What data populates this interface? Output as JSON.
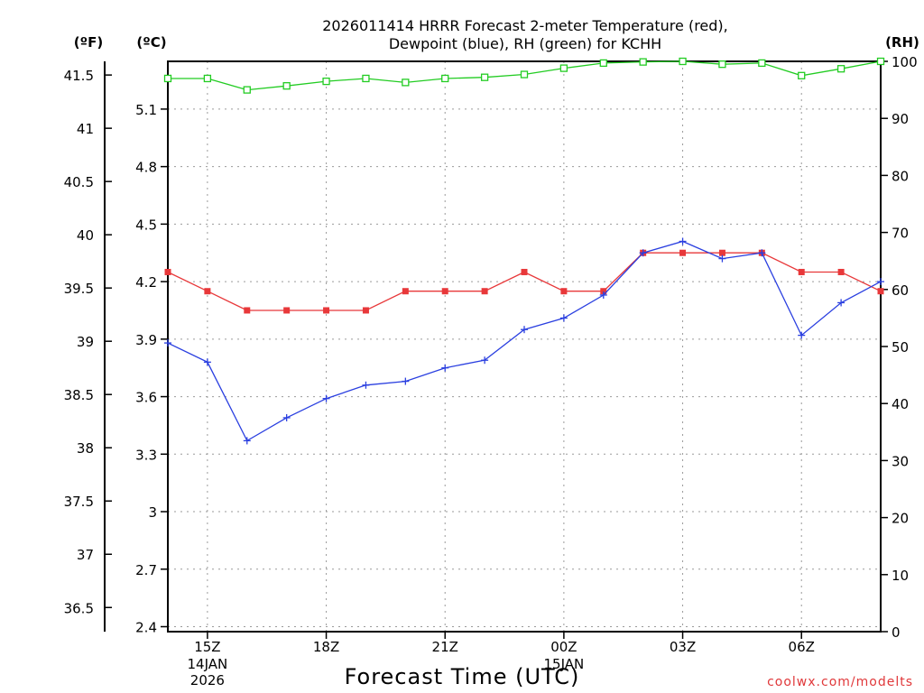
{
  "title": {
    "line1": "2026011414 HRRR Forecast 2-meter Temperature (red),",
    "line2": "Dewpoint (blue), RH (green) for KCHH"
  },
  "axis_units": {
    "fahrenheit": "(ºF)",
    "celsius": "(ºC)",
    "rh": "(RH)"
  },
  "xlabel": "Forecast Time (UTC)",
  "credit": "coolwx.com/modelts",
  "colors": {
    "temperature": "#e8383a",
    "dewpoint": "#2a3fe0",
    "rh": "#22cc22"
  },
  "chart_data": {
    "type": "line",
    "title": "2026011414 HRRR Forecast 2-meter Temperature (red), Dewpoint (blue), RH (green) for KCHH",
    "xlabel": "Forecast Time (UTC)",
    "x": [
      "14Z",
      "15Z",
      "16Z",
      "17Z",
      "18Z",
      "19Z",
      "20Z",
      "21Z",
      "22Z",
      "23Z",
      "00Z",
      "01Z",
      "02Z",
      "03Z",
      "04Z",
      "05Z",
      "06Z",
      "07Z",
      "08Z"
    ],
    "x_ticks": [
      {
        "index": 1,
        "label": "15Z",
        "sub": [
          "14JAN",
          "2026"
        ]
      },
      {
        "index": 4,
        "label": "18Z",
        "sub": []
      },
      {
        "index": 7,
        "label": "21Z",
        "sub": []
      },
      {
        "index": 10,
        "label": "00Z",
        "sub": [
          "15JAN"
        ]
      },
      {
        "index": 13,
        "label": "03Z",
        "sub": []
      },
      {
        "index": 16,
        "label": "06Z",
        "sub": []
      }
    ],
    "left_axis_celsius": {
      "label": "(ºC)",
      "range": [
        2.4,
        5.35
      ],
      "ticks": [
        "2.4",
        "2.7",
        "3",
        "3.3",
        "3.6",
        "3.9",
        "4.2",
        "4.5",
        "4.8",
        "5.1"
      ]
    },
    "left_axis_fahrenheit": {
      "label": "(ºF)",
      "ticks": [
        "36.5",
        "37",
        "37.5",
        "38",
        "38.5",
        "39",
        "39.5",
        "40",
        "40.5",
        "41",
        "41.5"
      ]
    },
    "right_axis_rh": {
      "label": "(RH)",
      "range": [
        0,
        100
      ],
      "ticks": [
        "0",
        "10",
        "20",
        "30",
        "40",
        "50",
        "60",
        "70",
        "80",
        "90",
        "100"
      ]
    },
    "series": [
      {
        "name": "Temperature",
        "axis": "celsius",
        "marker": "square",
        "values": [
          4.25,
          4.15,
          4.05,
          4.05,
          4.05,
          4.05,
          4.15,
          4.15,
          4.15,
          4.25,
          4.15,
          4.15,
          4.35,
          4.35,
          4.35,
          4.35,
          4.25,
          4.25,
          4.15
        ]
      },
      {
        "name": "Dewpoint",
        "axis": "celsius",
        "marker": "plus",
        "values": [
          3.88,
          3.78,
          3.37,
          3.49,
          3.59,
          3.66,
          3.68,
          3.75,
          3.79,
          3.95,
          4.01,
          4.13,
          4.35,
          4.41,
          4.32,
          4.35,
          3.92,
          4.09,
          4.2
        ]
      },
      {
        "name": "RH",
        "axis": "rh",
        "marker": "open-square",
        "values": [
          97.0,
          97.0,
          95.0,
          95.7,
          96.5,
          97.0,
          96.3,
          97.0,
          97.2,
          97.7,
          98.8,
          99.7,
          99.9,
          100.0,
          99.5,
          99.7,
          97.5,
          98.7,
          100.0
        ]
      }
    ]
  }
}
